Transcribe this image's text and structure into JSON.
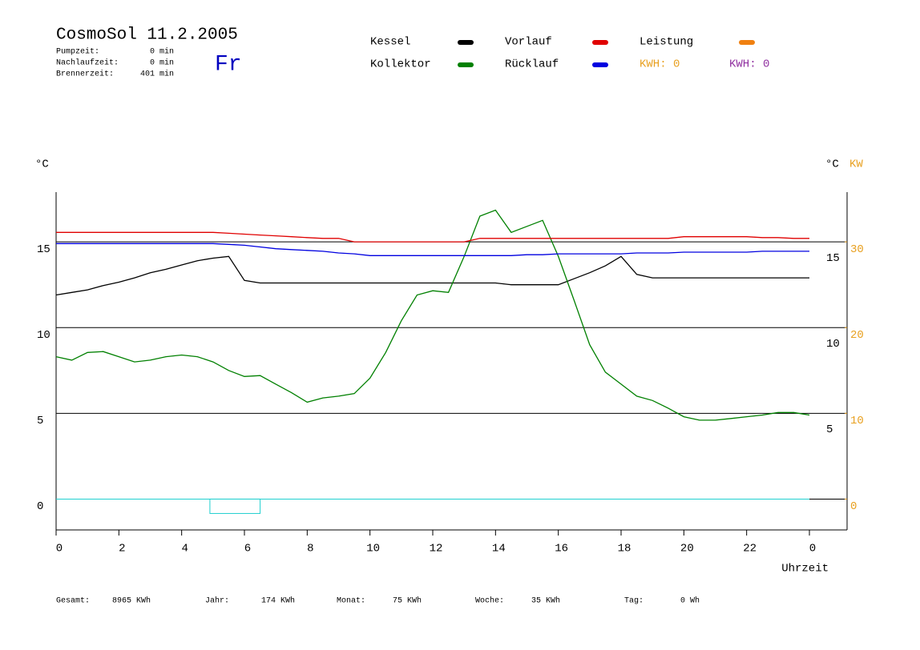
{
  "chart_data": {
    "type": "line",
    "title": "CosmoSol 11.2.2005",
    "day": "Fr",
    "info": [
      [
        "Pumpzeit:",
        "0 min"
      ],
      [
        "Nachlaufzeit:",
        "0 min"
      ],
      [
        "Brennerzeit:",
        "401 min"
      ]
    ],
    "y_unit_left": "°C",
    "y_unit_right": "°C",
    "y2_unit": "KW",
    "x_label": "Uhrzeit",
    "legend_extra": {
      "name": "Leistung",
      "color": "#f08010"
    },
    "kwh": [
      {
        "label": "KWH: 0",
        "color": "#e8a020"
      },
      {
        "label": "KWH: 0",
        "color": "#9030a0"
      }
    ],
    "footer": [
      [
        "Gesamt:",
        "8965 KWh"
      ],
      [
        "Jahr:",
        "174 KWh"
      ],
      [
        "Monat:",
        "75 KWh"
      ],
      [
        "Woche:",
        "35 KWh"
      ],
      [
        "Tag:",
        "0 Wh"
      ]
    ],
    "x": [
      0,
      0.5,
      1,
      1.5,
      2,
      2.5,
      3,
      3.5,
      4,
      4.5,
      5,
      5.5,
      6,
      6.5,
      7,
      7.5,
      8,
      8.5,
      9,
      9.5,
      10,
      10.5,
      11,
      11.5,
      12,
      12.5,
      13,
      13.5,
      14,
      14.5,
      15,
      15.5,
      16,
      16.5,
      17,
      17.5,
      18,
      18.5,
      19,
      19.5,
      20,
      20.5,
      21,
      21.5,
      22,
      22.5,
      23,
      23.5,
      24
    ],
    "xlim": [
      0,
      25.2
    ],
    "xticks": [
      0,
      2,
      4,
      6,
      8,
      10,
      12,
      14,
      16,
      18,
      20,
      22,
      {
        "value": 24,
        "label": "0"
      }
    ],
    "ylim": [
      -1.8,
      17.9
    ],
    "yticks": [
      0,
      5,
      10,
      15
    ],
    "yticks_right": [
      5,
      10,
      15
    ],
    "y2lim": [
      -3.6,
      35.8
    ],
    "y2ticks": [
      0,
      10,
      20,
      30
    ],
    "y2color": "#e8a020",
    "grid": true,
    "series": [
      {
        "name": "Kessel",
        "color": "#000000",
        "values": [
          11.9,
          12.05,
          12.2,
          12.45,
          12.65,
          12.9,
          13.2,
          13.4,
          13.65,
          13.9,
          14.05,
          14.15,
          12.75,
          12.6,
          12.6,
          12.6,
          12.6,
          12.6,
          12.6,
          12.6,
          12.6,
          12.6,
          12.6,
          12.6,
          12.6,
          12.6,
          12.6,
          12.6,
          12.6,
          12.5,
          12.5,
          12.5,
          12.5,
          12.85,
          13.2,
          13.6,
          14.15,
          13.1,
          12.9,
          12.9,
          12.9,
          12.9,
          12.9,
          12.9,
          12.9,
          12.9,
          12.9,
          12.9,
          12.9
        ]
      },
      {
        "name": "Kollektor",
        "color": "#008000",
        "values": [
          8.3,
          8.1,
          8.55,
          8.6,
          8.3,
          8.0,
          8.1,
          8.3,
          8.4,
          8.3,
          8.0,
          7.5,
          7.15,
          7.2,
          6.7,
          6.2,
          5.65,
          5.9,
          6.0,
          6.15,
          7.05,
          8.55,
          10.4,
          11.9,
          12.15,
          12.05,
          14.15,
          16.5,
          16.85,
          15.55,
          15.9,
          16.25,
          14.15,
          11.6,
          9.0,
          7.4,
          6.7,
          6.0,
          5.75,
          5.3,
          4.8,
          4.6,
          4.6,
          4.7,
          4.8,
          4.9,
          5.05,
          5.05,
          4.9
        ]
      },
      {
        "name": "Vorlauf",
        "color": "#e00000",
        "values": [
          15.55,
          15.55,
          15.55,
          15.55,
          15.55,
          15.55,
          15.55,
          15.55,
          15.55,
          15.55,
          15.55,
          15.5,
          15.45,
          15.4,
          15.35,
          15.3,
          15.25,
          15.2,
          15.2,
          15.0,
          15.0,
          15.0,
          15.0,
          15.0,
          15.0,
          15.0,
          15.0,
          15.2,
          15.2,
          15.2,
          15.2,
          15.2,
          15.2,
          15.2,
          15.2,
          15.2,
          15.2,
          15.2,
          15.2,
          15.2,
          15.3,
          15.3,
          15.3,
          15.3,
          15.3,
          15.25,
          15.25,
          15.2,
          15.2
        ]
      },
      {
        "name": "Rücklauf",
        "color": "#0000e0",
        "values": [
          14.9,
          14.9,
          14.9,
          14.9,
          14.9,
          14.9,
          14.9,
          14.9,
          14.9,
          14.9,
          14.9,
          14.85,
          14.8,
          14.7,
          14.6,
          14.55,
          14.5,
          14.45,
          14.35,
          14.3,
          14.2,
          14.2,
          14.2,
          14.2,
          14.2,
          14.2,
          14.2,
          14.2,
          14.2,
          14.2,
          14.25,
          14.25,
          14.3,
          14.3,
          14.3,
          14.3,
          14.3,
          14.35,
          14.35,
          14.35,
          14.4,
          14.4,
          14.4,
          14.4,
          14.4,
          14.45,
          14.45,
          14.45,
          14.45
        ]
      }
    ]
  }
}
